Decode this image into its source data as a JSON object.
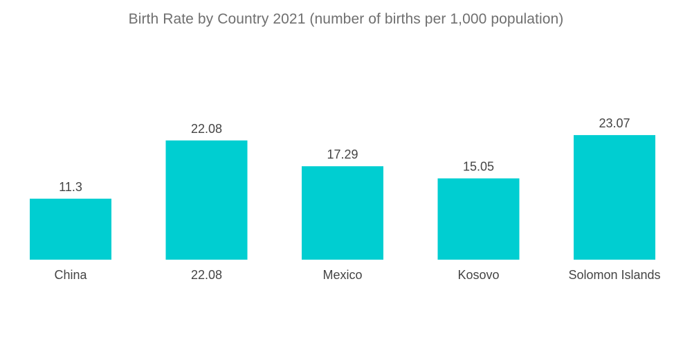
{
  "chart_data": {
    "type": "bar",
    "title": "Birth Rate by Country 2021 (number of births per 1,000 population)",
    "categories": [
      "China",
      "22.08",
      "Mexico",
      "Kosovo",
      "Solomon Islands"
    ],
    "values": [
      11.3,
      22.08,
      17.29,
      15.05,
      23.07
    ],
    "value_labels": [
      "11.3",
      "22.08",
      "17.29",
      "15.05",
      "23.07"
    ],
    "bar_color": "#00ced1",
    "grid": false,
    "legend": "none"
  }
}
